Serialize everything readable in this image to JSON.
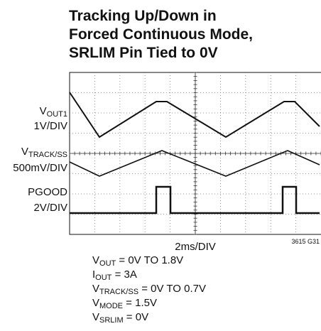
{
  "title": [
    "Tracking Up/Down in",
    "Forced Continuous Mode,",
    "SRLIM Pin Tied to 0V"
  ],
  "channels": [
    {
      "name": {
        "main": "V",
        "sub": "OUT1"
      },
      "scale": "1V/DIV"
    },
    {
      "name": {
        "main": "V",
        "sub": "TRACK/SS"
      },
      "scale": "500mV/DIV"
    },
    {
      "name": {
        "main": "PGOOD",
        "sub": ""
      },
      "scale": "2V/DIV"
    }
  ],
  "time_scale": "2ms/DIV",
  "figure_id": "3615 G31",
  "notes": [
    {
      "main": "V",
      "sub": "OUT",
      "rest": " = 0V TO 1.8V"
    },
    {
      "main": "I",
      "sub": "OUT",
      "rest": " = 3A"
    },
    {
      "main": "V",
      "sub": "TRACK/SS",
      "rest": " = 0V TO 0.7V"
    },
    {
      "main": "V",
      "sub": "MODE",
      "rest": " = 1.5V"
    },
    {
      "main": "V",
      "sub": "SRLIM",
      "rest": " = 0V"
    }
  ]
}
